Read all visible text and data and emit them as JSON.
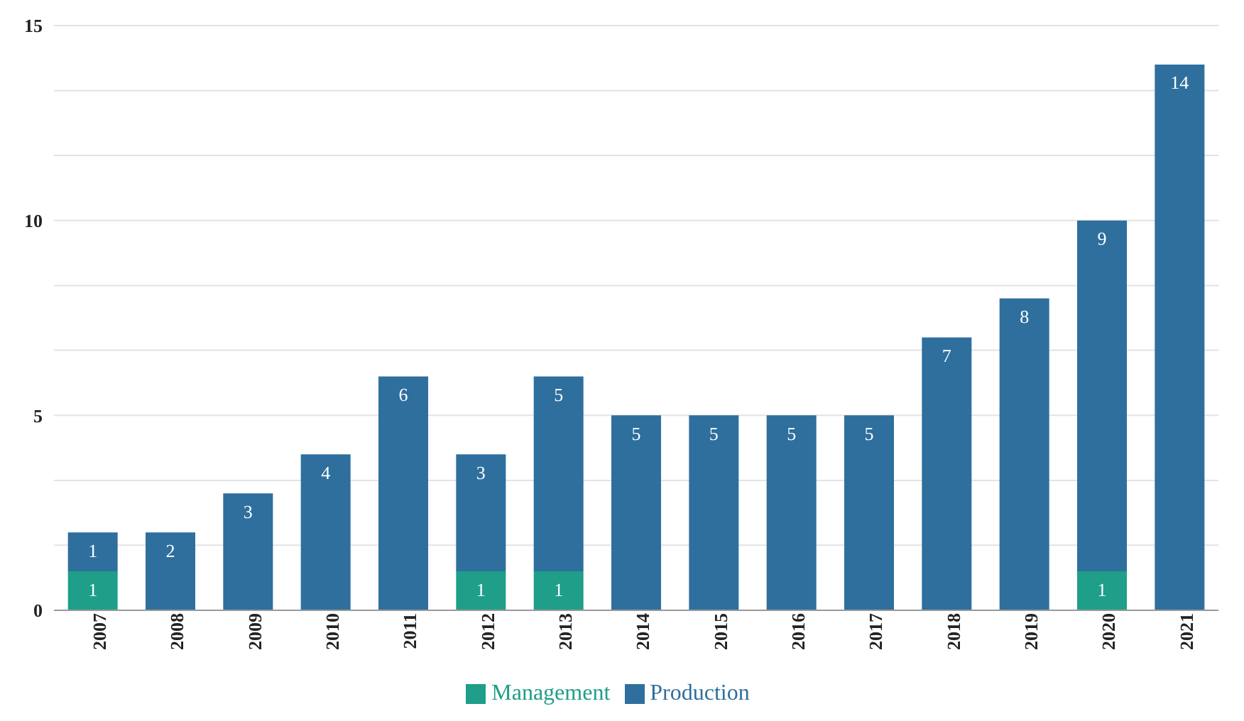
{
  "chart_data": {
    "type": "bar",
    "stacked": true,
    "categories": [
      "2007",
      "2008",
      "2009",
      "2010",
      "2011",
      "2012",
      "2013",
      "2014",
      "2015",
      "2016",
      "2017",
      "2018",
      "2019",
      "2020",
      "2021"
    ],
    "series": [
      {
        "name": "Management",
        "color": "#1f9e89",
        "values": [
          1,
          null,
          null,
          null,
          null,
          1,
          1,
          null,
          null,
          null,
          null,
          null,
          null,
          1,
          null
        ]
      },
      {
        "name": "Production",
        "color": "#2e6f9e",
        "values": [
          1,
          2,
          3,
          4,
          6,
          3,
          5,
          5,
          5,
          5,
          5,
          7,
          8,
          9,
          14
        ]
      }
    ],
    "ylim": [
      0,
      15
    ],
    "yticks": [
      0,
      {
        "value": 1.67,
        "label": null
      },
      {
        "value": 3.33,
        "label": null
      },
      5,
      {
        "value": 6.67,
        "label": null
      },
      {
        "value": 8.33,
        "label": null
      },
      10,
      {
        "value": 11.67,
        "label": null
      },
      {
        "value": 13.33,
        "label": null
      },
      15
    ],
    "grid": "y",
    "legend": "bottom",
    "data_labels": true
  }
}
